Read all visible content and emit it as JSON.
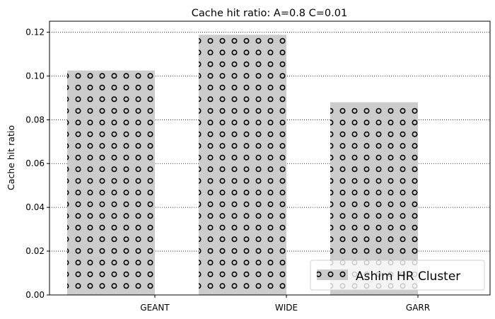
{
  "chart_data": {
    "type": "bar",
    "title": "Cache hit ratio: A=0.8 C=0.01",
    "xlabel": "",
    "ylabel": "Cache hit ratio",
    "categories": [
      "GEANT",
      "WIDE",
      "GARR"
    ],
    "series": [
      {
        "name": "Ashim HR Cluster",
        "values": [
          0.1025,
          0.1188,
          0.088
        ]
      }
    ],
    "ylim": [
      0,
      0.125
    ],
    "yticks": [
      "0.00",
      "0.02",
      "0.04",
      "0.06",
      "0.08",
      "0.10",
      "0.12"
    ],
    "grid": "horizontal dotted",
    "legend_position": "lower-right",
    "bar_color": "#cccccc",
    "hatch": "circles"
  }
}
